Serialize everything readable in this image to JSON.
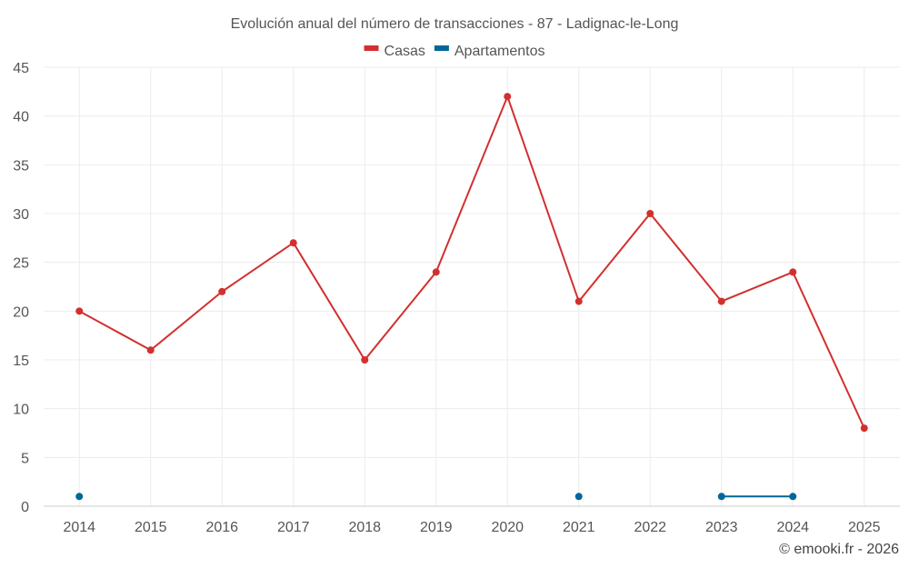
{
  "chart_data": {
    "type": "line",
    "title": "Evolución anual del número de transacciones - 87 - Ladignac-le-Long",
    "xlabel": "",
    "ylabel": "",
    "categories": [
      "2014",
      "2015",
      "2016",
      "2017",
      "2018",
      "2019",
      "2020",
      "2021",
      "2022",
      "2023",
      "2024",
      "2025"
    ],
    "ylim": [
      0,
      45
    ],
    "yticks": [
      "0",
      "5",
      "10",
      "15",
      "20",
      "25",
      "30",
      "35",
      "40",
      "45"
    ],
    "grid": true,
    "legend_position": "top-center",
    "series": [
      {
        "name": "Casas",
        "color": "#d32f2f",
        "values": [
          20,
          16,
          22,
          27,
          15,
          24,
          42,
          21,
          30,
          21,
          24,
          8
        ]
      },
      {
        "name": "Apartamentos",
        "color": "#01679a",
        "values": [
          1,
          null,
          null,
          null,
          null,
          null,
          null,
          1,
          null,
          1,
          1,
          null
        ]
      }
    ]
  },
  "credit": "© emooki.fr - 2026"
}
